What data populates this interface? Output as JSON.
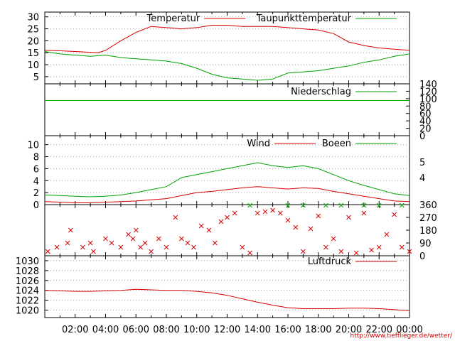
{
  "footer_url": "http://www.tiefflieger.de/wetter/",
  "colors": {
    "red": "#d40000",
    "green": "#00a000",
    "grid": "#a0a0a0"
  },
  "chart_data": [
    {
      "type": "line",
      "panel": "temperature",
      "ylim": [
        2,
        32
      ],
      "y_ticks": [
        "5",
        "10",
        "15",
        "20",
        "25",
        "30"
      ],
      "y_tick_values": [
        5,
        10,
        15,
        20,
        25,
        30
      ],
      "x_ticks": [
        "02:00",
        "04:00",
        "06:00",
        "08:00",
        "10:00",
        "12:00",
        "14:00",
        "16:00",
        "18:00",
        "20:00",
        "22:00",
        "00:00"
      ],
      "grid": true,
      "series": [
        {
          "name": "Temperatur",
          "color": "red",
          "x": [
            0,
            1,
            2,
            3,
            3.5,
            4,
            5,
            6,
            7,
            8,
            9,
            10,
            11,
            12,
            13,
            14,
            15,
            16,
            17,
            18,
            19,
            20,
            21,
            22,
            23,
            24
          ],
          "y": [
            16,
            15.8,
            15.5,
            15.2,
            15,
            16,
            20,
            23.5,
            26,
            25.5,
            25,
            25.5,
            26.5,
            26.5,
            26,
            26,
            26,
            25.5,
            25,
            24.5,
            23,
            19.5,
            18,
            17,
            16.5,
            16
          ]
        },
        {
          "name": "Taupunkttemperatur",
          "color": "green",
          "x": [
            0,
            1,
            2,
            3,
            4,
            5,
            6,
            7,
            8,
            9,
            10,
            11,
            12,
            13,
            14,
            15,
            16,
            17,
            18,
            19,
            20,
            21,
            22,
            23,
            24
          ],
          "y": [
            15.5,
            14.5,
            14,
            13.5,
            14,
            13,
            12.5,
            12,
            11.5,
            10.5,
            8.5,
            6,
            4.5,
            4,
            3.5,
            4,
            6.5,
            7,
            7.5,
            8.5,
            9.5,
            11,
            12,
            13.5,
            14.5
          ]
        }
      ]
    },
    {
      "type": "line",
      "panel": "precipitation",
      "ylim": [
        0,
        140
      ],
      "y_ticks": [
        "0",
        "20",
        "40",
        "60",
        "80",
        "100",
        "120",
        "140"
      ],
      "y_tick_values": [
        0,
        20,
        40,
        60,
        80,
        100,
        120,
        140
      ],
      "y_axis_side": "right",
      "series": [
        {
          "name": "Niederschlag",
          "color": "green",
          "x": [
            0,
            24
          ],
          "y": [
            95,
            95
          ]
        }
      ]
    },
    {
      "type": "line",
      "panel": "wind",
      "ylim": [
        0,
        11.5
      ],
      "y_ticks": [
        "0",
        "2",
        "4",
        "6",
        "8",
        "10"
      ],
      "y_tick_values": [
        0,
        2,
        4,
        6,
        8,
        10
      ],
      "y2_ticks": [
        "4",
        "5"
      ],
      "y2_tick_values": [
        4.5,
        7.1
      ],
      "grid": true,
      "series": [
        {
          "name": "Wind",
          "color": "red",
          "x": [
            0,
            1,
            2,
            3,
            4,
            5,
            6,
            7,
            8,
            9,
            10,
            11,
            12,
            13,
            14,
            15,
            16,
            17,
            18,
            19,
            20,
            21,
            22,
            23,
            24
          ],
          "y": [
            0.5,
            0.4,
            0.3,
            0.3,
            0.4,
            0.5,
            0.6,
            0.8,
            1.0,
            1.5,
            2.0,
            2.2,
            2.5,
            2.8,
            3.0,
            2.8,
            2.6,
            2.8,
            2.7,
            2.2,
            1.8,
            1.4,
            1.0,
            0.6,
            0.5
          ]
        },
        {
          "name": "Boeen",
          "color": "green",
          "x": [
            0,
            1,
            2,
            3,
            4,
            5,
            6,
            7,
            8,
            9,
            10,
            11,
            12,
            13,
            14,
            15,
            16,
            17,
            18,
            19,
            20,
            21,
            22,
            23,
            24
          ],
          "y": [
            1.6,
            1.5,
            1.4,
            1.3,
            1.4,
            1.6,
            2.0,
            2.5,
            3.0,
            4.5,
            5.0,
            5.5,
            6.0,
            6.5,
            7.0,
            6.5,
            6.2,
            6.5,
            6.0,
            5.0,
            4.0,
            3.2,
            2.5,
            1.8,
            1.5
          ]
        }
      ]
    },
    {
      "type": "scatter",
      "panel": "wind-direction",
      "ylim": [
        0,
        360
      ],
      "y_ticks": [
        "0",
        "90",
        "180",
        "270",
        "360"
      ],
      "y_tick_values": [
        0,
        90,
        180,
        270,
        360
      ],
      "y_axis_side": "right",
      "series": [
        {
          "color": "red",
          "x": [
            0.2,
            0.8,
            1.5,
            1.7,
            2.5,
            3.0,
            3.2,
            4.0,
            4.4,
            5.0,
            5.5,
            5.8,
            6.0,
            6.3,
            6.6,
            7.0,
            7.5,
            8.0,
            8.6,
            9.0,
            9.4,
            9.8,
            10.3,
            10.8,
            11.2,
            11.6,
            12.0,
            12.5,
            13.0,
            13.5,
            14.0,
            14.5,
            15.0,
            15.5,
            16.0,
            16.5,
            17.0,
            17.5,
            18.0,
            18.5,
            19.0,
            19.5,
            20.0,
            20.5,
            21.0,
            21.5,
            22.0,
            22.5,
            23.0,
            23.5,
            24.0
          ],
          "y": [
            30,
            60,
            90,
            180,
            60,
            90,
            30,
            120,
            90,
            60,
            150,
            120,
            180,
            60,
            90,
            30,
            120,
            60,
            270,
            120,
            90,
            60,
            210,
            180,
            90,
            240,
            270,
            300,
            60,
            20,
            300,
            310,
            320,
            300,
            250,
            200,
            30,
            190,
            280,
            60,
            120,
            30,
            270,
            20,
            300,
            40,
            60,
            150,
            290,
            60,
            30
          ]
        },
        {
          "color": "green",
          "x": [
            13.5,
            16.0,
            17.0,
            18.5,
            19.5,
            21.0,
            22.0,
            23.5
          ],
          "y": [
            355,
            355,
            355,
            355,
            355,
            355,
            355,
            355
          ]
        }
      ]
    },
    {
      "type": "line",
      "panel": "pressure",
      "ylim": [
        1018.5,
        1031
      ],
      "y_ticks": [
        "1020",
        "1022",
        "1024",
        "1026",
        "1028",
        "1030"
      ],
      "y_tick_values": [
        1020,
        1022,
        1024,
        1026,
        1028,
        1030
      ],
      "x_ticks": [
        "02:00",
        "04:00",
        "06:00",
        "08:00",
        "10:00",
        "12:00",
        "14:00",
        "16:00",
        "18:00",
        "20:00",
        "22:00",
        "00:00"
      ],
      "grid": true,
      "series": [
        {
          "name": "Luftdruck",
          "color": "red",
          "x": [
            0,
            1,
            2,
            3,
            4,
            5,
            6,
            7,
            8,
            9,
            10,
            11,
            12,
            13,
            14,
            15,
            16,
            17,
            18,
            19,
            20,
            21,
            22,
            23,
            24
          ],
          "y": [
            1024,
            1023.9,
            1023.8,
            1023.8,
            1023.9,
            1024,
            1024.2,
            1024.1,
            1024,
            1024,
            1023.8,
            1023.5,
            1023,
            1022.3,
            1021.6,
            1021,
            1020.5,
            1020.3,
            1020.3,
            1020.3,
            1020.4,
            1020.4,
            1020.3,
            1020.1,
            1019.9
          ]
        }
      ]
    }
  ]
}
